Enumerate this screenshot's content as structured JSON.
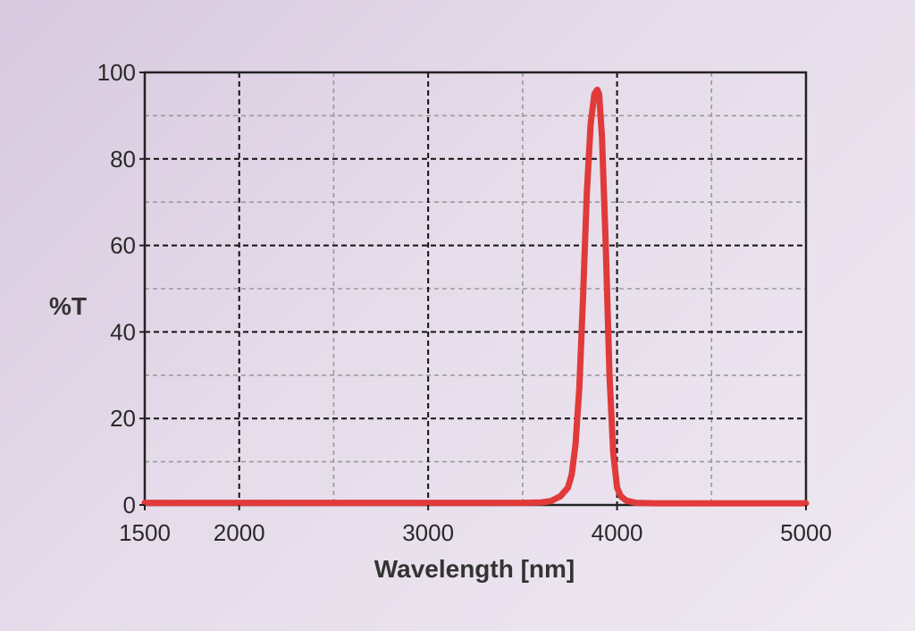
{
  "chart_data": {
    "type": "line",
    "title": "",
    "xlabel": "Wavelength [nm]",
    "ylabel": "%T",
    "xlim": [
      1500,
      5000
    ],
    "ylim": [
      0,
      100
    ],
    "x_ticks": [
      1500,
      2000,
      3000,
      4000,
      5000
    ],
    "x_minor_grid": [
      2500,
      3500,
      4500
    ],
    "y_ticks": [
      0,
      20,
      40,
      60,
      80,
      100
    ],
    "y_minor_grid": [
      10,
      30,
      50,
      70,
      90
    ],
    "grid": true,
    "series": [
      {
        "color": "#e03a3a",
        "x": [
          1500,
          2000,
          2500,
          3000,
          3500,
          3600,
          3650,
          3700,
          3740,
          3760,
          3780,
          3800,
          3820,
          3840,
          3860,
          3880,
          3895,
          3905,
          3920,
          3940,
          3960,
          3980,
          4000,
          4020,
          4050,
          4100,
          4200,
          4500,
          5000
        ],
        "y": [
          0.5,
          0.5,
          0.5,
          0.5,
          0.5,
          0.6,
          0.9,
          2,
          4,
          7,
          14,
          27,
          48,
          72,
          88,
          95,
          96,
          95,
          85,
          60,
          30,
          12,
          4,
          2,
          1,
          0.5,
          0.4,
          0.4,
          0.4
        ]
      }
    ]
  },
  "colors": {
    "curve": "#e03a3a",
    "grid_major": "#111111",
    "grid_minor": "#9a9a9a",
    "frame": "#222222"
  }
}
